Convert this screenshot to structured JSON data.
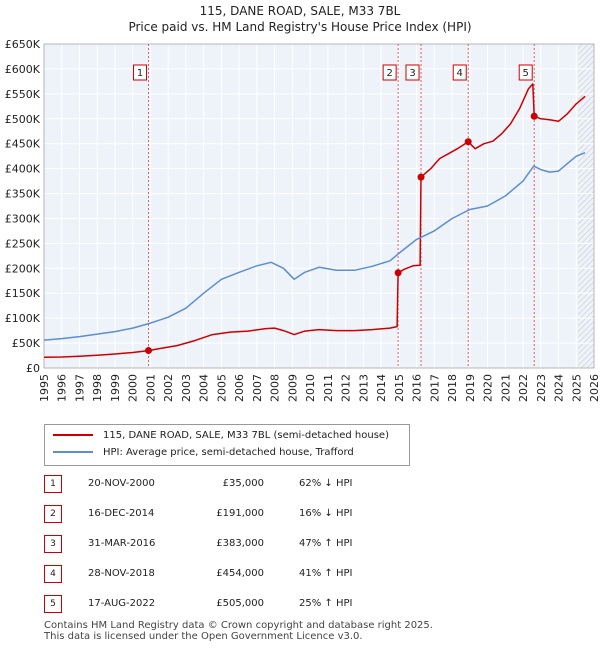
{
  "chart_data": {
    "type": "line",
    "title": "115, DANE ROAD, SALE, M33 7BL",
    "subtitle": "Price paid vs. HM Land Registry's House Price Index (HPI)",
    "xlabel": "",
    "ylabel": "",
    "xlim": [
      1995,
      2026
    ],
    "ylim": [
      0,
      650000
    ],
    "x_ticks": [
      "1995",
      "1996",
      "1997",
      "1998",
      "1999",
      "2000",
      "2001",
      "2002",
      "2003",
      "2004",
      "2005",
      "2006",
      "2007",
      "2008",
      "2009",
      "2010",
      "2011",
      "2012",
      "2013",
      "2014",
      "2015",
      "2016",
      "2017",
      "2018",
      "2019",
      "2020",
      "2021",
      "2022",
      "2023",
      "2024",
      "2025",
      "2026"
    ],
    "y_ticks": [
      {
        "value": 0,
        "label": "£0"
      },
      {
        "value": 50000,
        "label": "£50K"
      },
      {
        "value": 100000,
        "label": "£100K"
      },
      {
        "value": 150000,
        "label": "£150K"
      },
      {
        "value": 200000,
        "label": "£200K"
      },
      {
        "value": 250000,
        "label": "£250K"
      },
      {
        "value": 300000,
        "label": "£300K"
      },
      {
        "value": 350000,
        "label": "£350K"
      },
      {
        "value": 400000,
        "label": "£400K"
      },
      {
        "value": 450000,
        "label": "£450K"
      },
      {
        "value": 500000,
        "label": "£500K"
      },
      {
        "value": 550000,
        "label": "£550K"
      },
      {
        "value": 600000,
        "label": "£600K"
      },
      {
        "value": 650000,
        "label": "£650K"
      }
    ],
    "grid": true,
    "future_from": 2025.1,
    "series": [
      {
        "name": "115, DANE ROAD, SALE, M33 7BL (semi-detached house)",
        "color": "#cc0000",
        "points": [
          [
            1995.0,
            21500
          ],
          [
            1996.0,
            22000
          ],
          [
            1997.0,
            23500
          ],
          [
            1998.0,
            25500
          ],
          [
            1999.0,
            28000
          ],
          [
            2000.0,
            31000
          ],
          [
            2000.89,
            35000
          ],
          [
            2001.5,
            39000
          ],
          [
            2002.5,
            45000
          ],
          [
            2003.5,
            55000
          ],
          [
            2004.5,
            67000
          ],
          [
            2005.5,
            72000
          ],
          [
            2006.5,
            74000
          ],
          [
            2007.5,
            79000
          ],
          [
            2008.0,
            80000
          ],
          [
            2008.5,
            75000
          ],
          [
            2009.1,
            67000
          ],
          [
            2009.7,
            74000
          ],
          [
            2010.5,
            77000
          ],
          [
            2011.5,
            75000
          ],
          [
            2012.5,
            75000
          ],
          [
            2013.5,
            77000
          ],
          [
            2014.5,
            80000
          ],
          [
            2014.9,
            83000
          ],
          [
            2014.96,
            191000
          ],
          [
            2015.3,
            198000
          ],
          [
            2015.8,
            205000
          ],
          [
            2016.2,
            206000
          ],
          [
            2016.25,
            383000
          ],
          [
            2016.8,
            400000
          ],
          [
            2017.3,
            420000
          ],
          [
            2017.8,
            430000
          ],
          [
            2018.3,
            440000
          ],
          [
            2018.91,
            454000
          ],
          [
            2019.3,
            440000
          ],
          [
            2019.8,
            450000
          ],
          [
            2020.3,
            455000
          ],
          [
            2020.8,
            470000
          ],
          [
            2021.3,
            490000
          ],
          [
            2021.8,
            520000
          ],
          [
            2022.3,
            560000
          ],
          [
            2022.55,
            570000
          ],
          [
            2022.63,
            505000
          ],
          [
            2023.0,
            500000
          ],
          [
            2023.5,
            498000
          ],
          [
            2024.0,
            495000
          ],
          [
            2024.5,
            510000
          ],
          [
            2025.0,
            530000
          ],
          [
            2025.5,
            545000
          ]
        ]
      },
      {
        "name": "HPI: Average price, semi-detached house, Trafford",
        "color": "#5b8fd0",
        "points": [
          [
            1995.0,
            56000
          ],
          [
            1996.0,
            59000
          ],
          [
            1997.0,
            63000
          ],
          [
            1998.0,
            68000
          ],
          [
            1999.0,
            73000
          ],
          [
            2000.0,
            80000
          ],
          [
            2001.0,
            90000
          ],
          [
            2002.0,
            102000
          ],
          [
            2003.0,
            120000
          ],
          [
            2004.0,
            150000
          ],
          [
            2005.0,
            178000
          ],
          [
            2006.0,
            192000
          ],
          [
            2007.0,
            205000
          ],
          [
            2007.8,
            212000
          ],
          [
            2008.5,
            200000
          ],
          [
            2009.1,
            178000
          ],
          [
            2009.7,
            192000
          ],
          [
            2010.5,
            202000
          ],
          [
            2011.5,
            196000
          ],
          [
            2012.5,
            196000
          ],
          [
            2013.5,
            204000
          ],
          [
            2014.5,
            215000
          ],
          [
            2015.0,
            230000
          ],
          [
            2016.0,
            258000
          ],
          [
            2017.0,
            275000
          ],
          [
            2018.0,
            300000
          ],
          [
            2019.0,
            318000
          ],
          [
            2020.0,
            325000
          ],
          [
            2021.0,
            345000
          ],
          [
            2022.0,
            375000
          ],
          [
            2022.6,
            405000
          ],
          [
            2023.0,
            398000
          ],
          [
            2023.5,
            393000
          ],
          [
            2024.0,
            395000
          ],
          [
            2024.5,
            410000
          ],
          [
            2025.0,
            425000
          ],
          [
            2025.5,
            432000
          ]
        ]
      }
    ],
    "sales": [
      {
        "n": "1",
        "x": 2000.89,
        "value": 35000
      },
      {
        "n": "2",
        "x": 2014.96,
        "value": 191000
      },
      {
        "n": "3",
        "x": 2016.25,
        "value": 383000
      },
      {
        "n": "4",
        "x": 2018.91,
        "value": 454000
      },
      {
        "n": "5",
        "x": 2022.63,
        "value": 505000
      }
    ],
    "legend": "below"
  },
  "legend_items": [
    {
      "label": "115, DANE ROAD, SALE, M33 7BL (semi-detached house)",
      "color": "#cc0000"
    },
    {
      "label": "HPI: Average price, semi-detached house, Trafford",
      "color": "#5b8fd0"
    }
  ],
  "transactions": [
    {
      "n": "1",
      "date": "20-NOV-2000",
      "price": "£35,000",
      "hpi": "62% ↓ HPI"
    },
    {
      "n": "2",
      "date": "16-DEC-2014",
      "price": "£191,000",
      "hpi": "16% ↓ HPI"
    },
    {
      "n": "3",
      "date": "31-MAR-2016",
      "price": "£383,000",
      "hpi": "47% ↑ HPI"
    },
    {
      "n": "4",
      "date": "28-NOV-2018",
      "price": "£454,000",
      "hpi": "41% ↑ HPI"
    },
    {
      "n": "5",
      "date": "17-AUG-2022",
      "price": "£505,000",
      "hpi": "25% ↑ HPI"
    }
  ],
  "footer": {
    "line1": "Contains HM Land Registry data © Crown copyright and database right 2025.",
    "line2": "This data is licensed under the Open Government Licence v3.0."
  }
}
